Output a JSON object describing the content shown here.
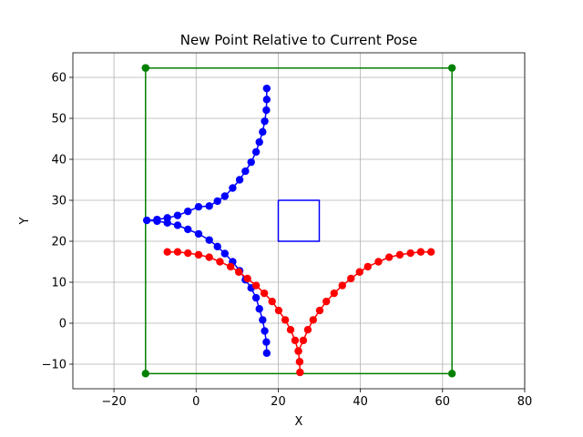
{
  "chart_data": {
    "type": "line",
    "title": "New Point Relative to Current Pose",
    "xlabel": "X",
    "ylabel": "Y",
    "xlim": [
      -30,
      80
    ],
    "ylim": [
      -16,
      66
    ],
    "xticks": [
      -20,
      0,
      20,
      40,
      60,
      80
    ],
    "yticks": [
      -10,
      0,
      10,
      20,
      30,
      40,
      50,
      60
    ],
    "xtick_labels": [
      "−20",
      "0",
      "20",
      "40",
      "60",
      "80"
    ],
    "ytick_labels": [
      "−10",
      "0",
      "10",
      "20",
      "30",
      "40",
      "50",
      "60"
    ],
    "grid": true,
    "legend": "none",
    "series": [
      {
        "color": "#008000",
        "marker": "circle",
        "points": [
          [
            -12.3,
            62.3
          ],
          [
            62.3,
            62.3
          ],
          [
            62.3,
            -12.3
          ],
          [
            -12.3,
            -12.3
          ],
          [
            -12.3,
            62.3
          ]
        ]
      },
      {
        "color": "#0000ff",
        "marker": "none",
        "points": [
          [
            20,
            30
          ],
          [
            30,
            30
          ],
          [
            30,
            20
          ],
          [
            20,
            20
          ],
          [
            20,
            30
          ]
        ]
      },
      {
        "color": "#0000ff",
        "marker": "circle",
        "points": [
          [
            17.2,
            57.3
          ],
          [
            17.2,
            54.6
          ],
          [
            17.1,
            52.0
          ],
          [
            16.7,
            49.3
          ],
          [
            16.2,
            46.7
          ],
          [
            15.4,
            44.2
          ],
          [
            14.6,
            41.8
          ],
          [
            13.4,
            39.3
          ],
          [
            12.0,
            37.1
          ],
          [
            10.6,
            35.0
          ],
          [
            8.9,
            33.0
          ],
          [
            7.0,
            31.0
          ],
          [
            5.2,
            29.8
          ],
          [
            3.2,
            28.6
          ],
          [
            0.6,
            28.4
          ],
          [
            -2.0,
            27.3
          ],
          [
            -4.5,
            26.3
          ],
          [
            -7.0,
            25.7
          ],
          [
            -9.5,
            25.3
          ],
          [
            -12.0,
            25.1
          ],
          [
            -9.5,
            24.9
          ],
          [
            -7.0,
            24.5
          ],
          [
            -4.5,
            23.9
          ],
          [
            -2.0,
            22.9
          ],
          [
            0.6,
            21.8
          ],
          [
            3.2,
            20.3
          ],
          [
            5.2,
            18.7
          ],
          [
            7.0,
            17.0
          ],
          [
            8.9,
            15.0
          ],
          [
            10.6,
            12.8
          ],
          [
            12.0,
            10.6
          ],
          [
            13.4,
            8.6
          ],
          [
            14.6,
            6.2
          ],
          [
            15.4,
            3.5
          ],
          [
            16.2,
            0.8
          ],
          [
            16.7,
            -1.9
          ],
          [
            17.1,
            -4.6
          ],
          [
            17.2,
            -7.3
          ]
        ]
      },
      {
        "color": "#ff0000",
        "marker": "circle",
        "points": [
          [
            -7.0,
            17.4
          ],
          [
            -4.5,
            17.4
          ],
          [
            -2.0,
            17.1
          ],
          [
            0.6,
            16.7
          ],
          [
            3.2,
            16.1
          ],
          [
            5.8,
            15.0
          ],
          [
            8.4,
            13.8
          ],
          [
            10.4,
            12.5
          ],
          [
            12.5,
            10.9
          ],
          [
            14.6,
            9.2
          ],
          [
            16.6,
            7.3
          ],
          [
            18.5,
            5.3
          ],
          [
            20.1,
            3.1
          ],
          [
            21.7,
            0.8
          ],
          [
            23.0,
            -1.6
          ],
          [
            24.1,
            -4.2
          ],
          [
            24.9,
            -6.8
          ],
          [
            25.2,
            -9.4
          ],
          [
            25.3,
            -12.0
          ],
          [
            25.2,
            -9.4
          ],
          [
            24.9,
            -6.8
          ],
          [
            26.1,
            -4.2
          ],
          [
            27.2,
            -1.6
          ],
          [
            28.5,
            0.8
          ],
          [
            30.1,
            3.1
          ],
          [
            31.7,
            5.3
          ],
          [
            33.6,
            7.3
          ],
          [
            35.6,
            9.2
          ],
          [
            37.7,
            10.9
          ],
          [
            39.8,
            12.5
          ],
          [
            41.8,
            13.8
          ],
          [
            44.4,
            15.0
          ],
          [
            47.0,
            16.1
          ],
          [
            49.6,
            16.7
          ],
          [
            52.2,
            17.1
          ],
          [
            54.7,
            17.4
          ],
          [
            57.2,
            17.4
          ]
        ]
      }
    ]
  }
}
